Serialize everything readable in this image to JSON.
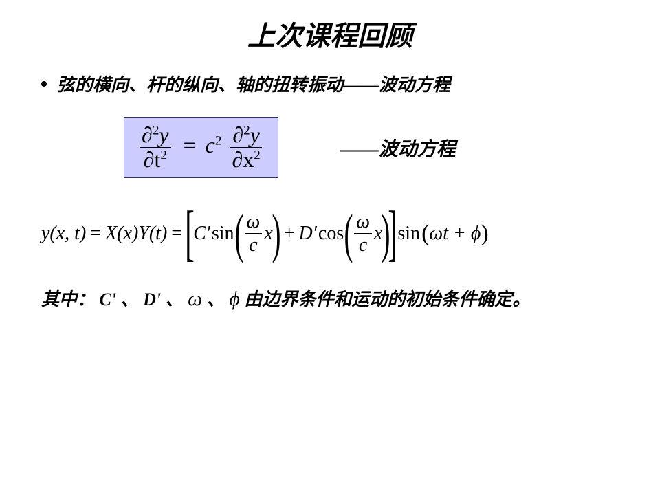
{
  "title": "上次课程回顾",
  "bullet": "弦的横向、杆的纵向、轴的扭转振动——波动方程",
  "wave_eq_label": "——波动方程",
  "wave_eq": {
    "lhs_num": "∂",
    "lhs_num_sup": "2",
    "lhs_num_var": "y",
    "lhs_den": "∂t",
    "lhs_den_sup": "2",
    "eq_sign": "=",
    "coef": "c",
    "coef_sup": "2",
    "rhs_num": "∂",
    "rhs_num_sup": "2",
    "rhs_num_var": "y",
    "rhs_den": "∂x",
    "rhs_den_sup": "2"
  },
  "solution": {
    "lhs": "y(x, t)",
    "eq1": "=",
    "sep": "X(x)Y(t)",
    "eq2": "=",
    "c_prime": "C′",
    "sin1": "sin",
    "frac1_num": "ω",
    "frac1_den": "c",
    "arg1": "x",
    "plus": "+",
    "d_prime": "D′",
    "cos1": "cos",
    "frac2_num": "ω",
    "frac2_den": "c",
    "arg2": "x",
    "sin2": "sin",
    "phase": "ωt + ϕ"
  },
  "footer": {
    "pre": "其中：",
    "c": "C'",
    "sep1": " 、",
    "d": "D'",
    "sep2": " 、 ",
    "omega": "ω",
    "sep3": "  、 ",
    "phi": "ϕ",
    "post": " 由边界条件和运动的初始条件确定。"
  },
  "colors": {
    "box_bg": "#ccccff",
    "box_border": "#333366",
    "text": "#000000",
    "background": "#ffffff"
  }
}
